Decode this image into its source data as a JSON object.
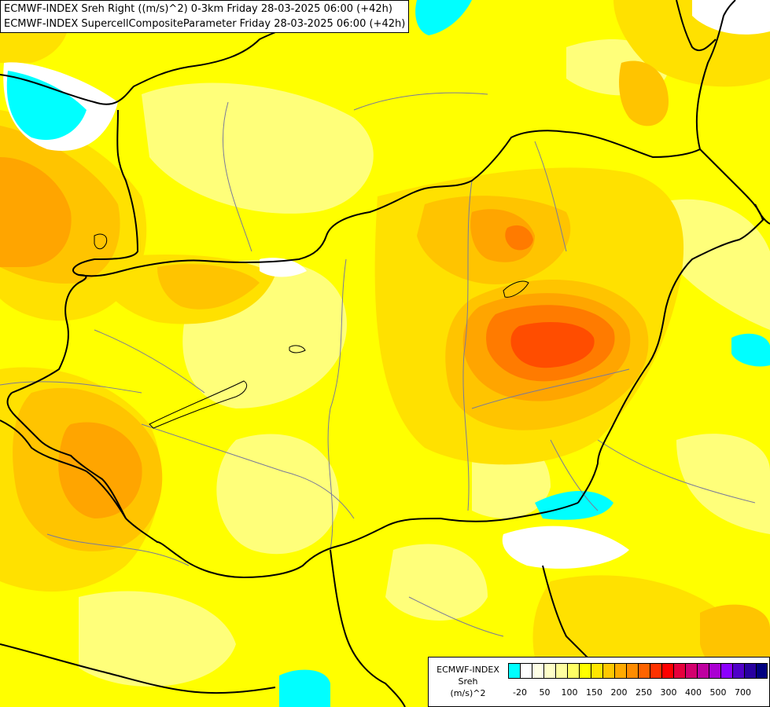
{
  "titles": {
    "line1": "ECMWF-INDEX Sreh Right ((m/s)^2) 0-3km Friday 28-03-2025 06:00 (+42h)",
    "line2": "ECMWF-INDEX SupercellCompositeParameter Friday 28-03-2025 06:00 (+42h)"
  },
  "legend": {
    "source": "ECMWF-INDEX",
    "variable": "Sreh",
    "unit": "(m/s)^2",
    "colors": [
      "#00ffff",
      "#ffffff",
      "#ffffe6",
      "#ffffc8",
      "#ffffa0",
      "#ffff64",
      "#ffff00",
      "#ffe600",
      "#ffc800",
      "#ffaa00",
      "#ff8c00",
      "#ff6400",
      "#ff3200",
      "#ff0000",
      "#e6003c",
      "#d2006e",
      "#be00a0",
      "#aa00d2",
      "#8c00ff",
      "#5000c8",
      "#2800a0",
      "#000080"
    ],
    "ticks": [
      "-20",
      "50",
      "100",
      "150",
      "200",
      "250",
      "300",
      "400",
      "500",
      "700"
    ]
  },
  "map": {
    "field_colors": {
      "background": "#ffff00",
      "pale": "#ffff7a",
      "light_orange": "#ffe100",
      "orange": "#ffc400",
      "dark_orange": "#ffa500",
      "red_orange": "#ff7b00",
      "red": "#ff4d00",
      "cyan": "#00ffff",
      "white": "#ffffff"
    },
    "border_color": "#000000",
    "river_color": "#7a7a9a"
  }
}
